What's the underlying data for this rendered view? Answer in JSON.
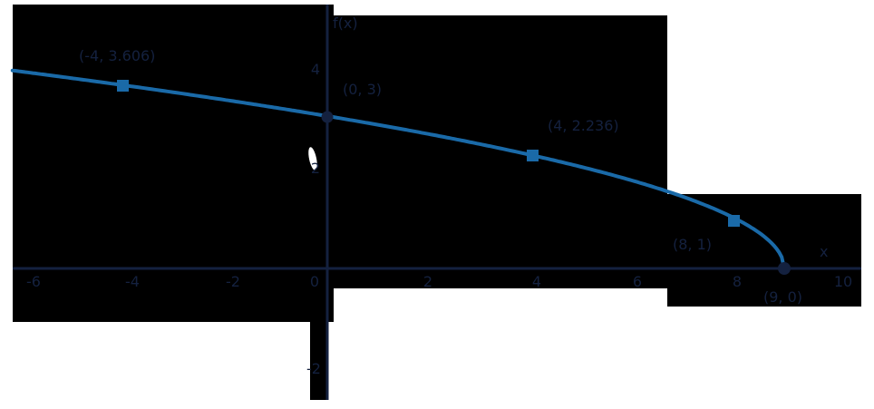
{
  "chart_data": {
    "type": "line",
    "title": "",
    "function": "f(x) = sqrt(9 - x)",
    "xlabel": "x",
    "ylabel": "f(x)",
    "xlim": [
      -6.2,
      10.3
    ],
    "ylim": [
      -2.6,
      5.2
    ],
    "grid": false,
    "x_ticks": [
      "-6",
      "-4",
      "-2",
      "0",
      "2",
      "4",
      "6",
      "8",
      "10"
    ],
    "y_ticks": [
      "4",
      "2",
      "-2"
    ],
    "series": [
      {
        "name": "f(x)",
        "color": "#1a6aa8",
        "curve": "sqrt(9-x) for x in [-6.2, 9]"
      }
    ],
    "points": [
      {
        "x": -4,
        "y": 3.606,
        "label": "(-4, 3.606)",
        "marker": "square"
      },
      {
        "x": 0,
        "y": 3,
        "label": "(0, 3)",
        "marker": "circle"
      },
      {
        "x": 4,
        "y": 2.236,
        "label": "(4, 2.236)",
        "marker": "square"
      },
      {
        "x": 8,
        "y": 1,
        "label": "(8, 1)",
        "marker": "square"
      },
      {
        "x": 9,
        "y": 0,
        "label": "(9, 0)",
        "marker": "circle"
      }
    ]
  },
  "axes": {
    "x_label": "x",
    "y_label": "f(x)",
    "x_ticks": [
      {
        "v": -6,
        "t": "-6"
      },
      {
        "v": -4,
        "t": "-4"
      },
      {
        "v": -2,
        "t": "-2"
      },
      {
        "v": 0,
        "t": "0"
      },
      {
        "v": 2,
        "t": "2"
      },
      {
        "v": 4,
        "t": "4"
      },
      {
        "v": 6,
        "t": "6"
      },
      {
        "v": 8,
        "t": "8"
      },
      {
        "v": 10,
        "t": "10"
      }
    ],
    "y_ticks": [
      {
        "v": 4,
        "t": "4"
      },
      {
        "v": 2,
        "t": "2"
      },
      {
        "v": -2,
        "t": "-2"
      }
    ]
  },
  "labels": {
    "p1": "(-4, 3.606)",
    "p2": "(0, 3)",
    "p3": "(4, 2.236)",
    "p4": "(8, 1)",
    "p5": "(9, 0)"
  },
  "colors": {
    "curve": "#1a6aa8",
    "axis": "#14213f",
    "background": "#000000"
  }
}
